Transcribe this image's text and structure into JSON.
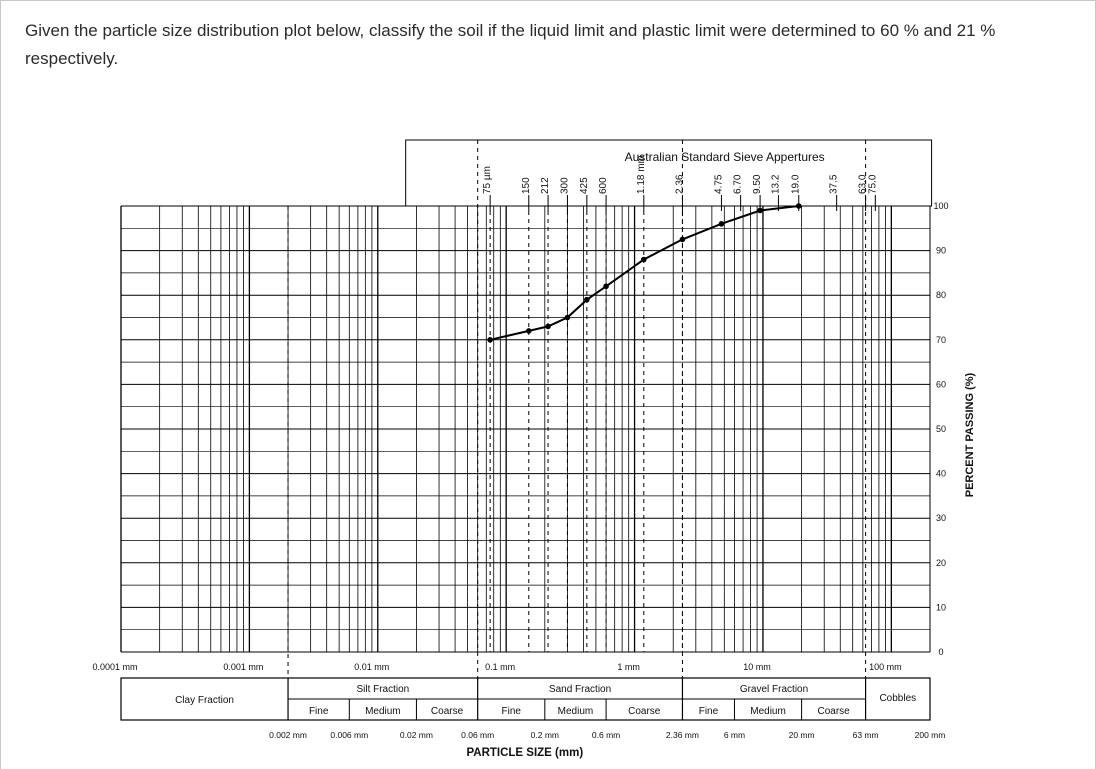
{
  "question": "Given the particle size distribution plot below, classify the soil if the liquid limit and plastic limit were determined to 60 % and 21 % respectively.",
  "colors": {
    "grid": "#000000",
    "curve": "#000000",
    "frame": "#c8c8c8",
    "text": "#2b2b2b"
  },
  "chart_data": {
    "type": "line",
    "title": "Australian Standard Sieve Appertures",
    "xlabel": "PARTICLE  SIZE  (mm)",
    "ylabel": "PERCENT PASSING (%)",
    "x_scale": "log",
    "xlim": [
      0.0001,
      200
    ],
    "ylim": [
      0,
      100
    ],
    "y_ticks": [
      0,
      10,
      20,
      30,
      40,
      50,
      60,
      70,
      80,
      90,
      100
    ],
    "x_decade_labels": [
      {
        "x": 0.0001,
        "label": "0.0001 mm"
      },
      {
        "x": 0.001,
        "label": "0.001 mm"
      },
      {
        "x": 0.01,
        "label": "0.01 mm"
      },
      {
        "x": 0.1,
        "label": "0.1 mm"
      },
      {
        "x": 1,
        "label": "1 mm"
      },
      {
        "x": 10,
        "label": "10 mm"
      },
      {
        "x": 100,
        "label": "100 mm"
      }
    ],
    "x_boundary_labels": [
      {
        "x": 0.002,
        "label": "0.002 mm"
      },
      {
        "x": 0.006,
        "label": "0.006 mm"
      },
      {
        "x": 0.02,
        "label": "0.02 mm"
      },
      {
        "x": 0.06,
        "label": "0.06 mm"
      },
      {
        "x": 0.2,
        "label": "0.2 mm"
      },
      {
        "x": 0.6,
        "label": "0.6 mm"
      },
      {
        "x": 2.36,
        "label": "2.36 mm"
      },
      {
        "x": 6,
        "label": "6 mm"
      },
      {
        "x": 20,
        "label": "20 mm"
      },
      {
        "x": 63,
        "label": "63 mm"
      },
      {
        "x": 200,
        "label": "200 mm"
      }
    ],
    "sieves": [
      {
        "x": 0.075,
        "label": "75 µm"
      },
      {
        "x": 0.15,
        "label": "150"
      },
      {
        "x": 0.212,
        "label": "212"
      },
      {
        "x": 0.3,
        "label": "300"
      },
      {
        "x": 0.425,
        "label": "425"
      },
      {
        "x": 0.6,
        "label": "600"
      },
      {
        "x": 1.18,
        "label": "1.18 mm"
      },
      {
        "x": 2.36,
        "label": "2.36"
      },
      {
        "x": 4.75,
        "label": "4.75"
      },
      {
        "x": 6.7,
        "label": "6.70"
      },
      {
        "x": 9.5,
        "label": "9.50"
      },
      {
        "x": 13.2,
        "label": "13.2"
      },
      {
        "x": 19.0,
        "label": "19.0"
      },
      {
        "x": 37.5,
        "label": "37.5"
      },
      {
        "x": 63.0,
        "label": "63.0"
      },
      {
        "x": 75.0,
        "label": "75.0"
      }
    ],
    "series": [
      {
        "points": [
          {
            "x": 0.075,
            "y": 70
          },
          {
            "x": 0.15,
            "y": 72
          },
          {
            "x": 0.212,
            "y": 73
          },
          {
            "x": 0.3,
            "y": 75
          },
          {
            "x": 0.425,
            "y": 79
          },
          {
            "x": 0.6,
            "y": 82
          },
          {
            "x": 1.18,
            "y": 88
          },
          {
            "x": 2.36,
            "y": 92.5
          },
          {
            "x": 4.75,
            "y": 96
          },
          {
            "x": 9.5,
            "y": 99
          },
          {
            "x": 19.0,
            "y": 100
          }
        ]
      }
    ],
    "fractions": {
      "clay": {
        "label": "Clay Fraction",
        "xmax": 0.002
      },
      "silt": {
        "label": "Silt Fraction",
        "xmin": 0.002,
        "xmax": 0.06,
        "subs": [
          {
            "label": "Fine",
            "xmin": 0.002,
            "xmax": 0.006
          },
          {
            "label": "Medium",
            "xmin": 0.006,
            "xmax": 0.02
          },
          {
            "label": "Coarse",
            "xmin": 0.02,
            "xmax": 0.06
          }
        ]
      },
      "sand": {
        "label": "Sand Fraction",
        "xmin": 0.06,
        "xmax": 2.36,
        "subs": [
          {
            "label": "Fine",
            "xmin": 0.06,
            "xmax": 0.2
          },
          {
            "label": "Medium",
            "xmin": 0.2,
            "xmax": 0.6
          },
          {
            "label": "Coarse",
            "xmin": 0.6,
            "xmax": 2.36
          }
        ]
      },
      "gravel": {
        "label": "Gravel Fraction",
        "xmin": 2.36,
        "xmax": 63,
        "subs": [
          {
            "label": "Fine",
            "xmin": 2.36,
            "xmax": 6
          },
          {
            "label": "Medium",
            "xmin": 6,
            "xmax": 20
          },
          {
            "label": "Coarse",
            "xmin": 20,
            "xmax": 63
          }
        ]
      },
      "cobbles": {
        "label": "Cobbles",
        "xmin": 63,
        "xmax": 200
      }
    }
  }
}
